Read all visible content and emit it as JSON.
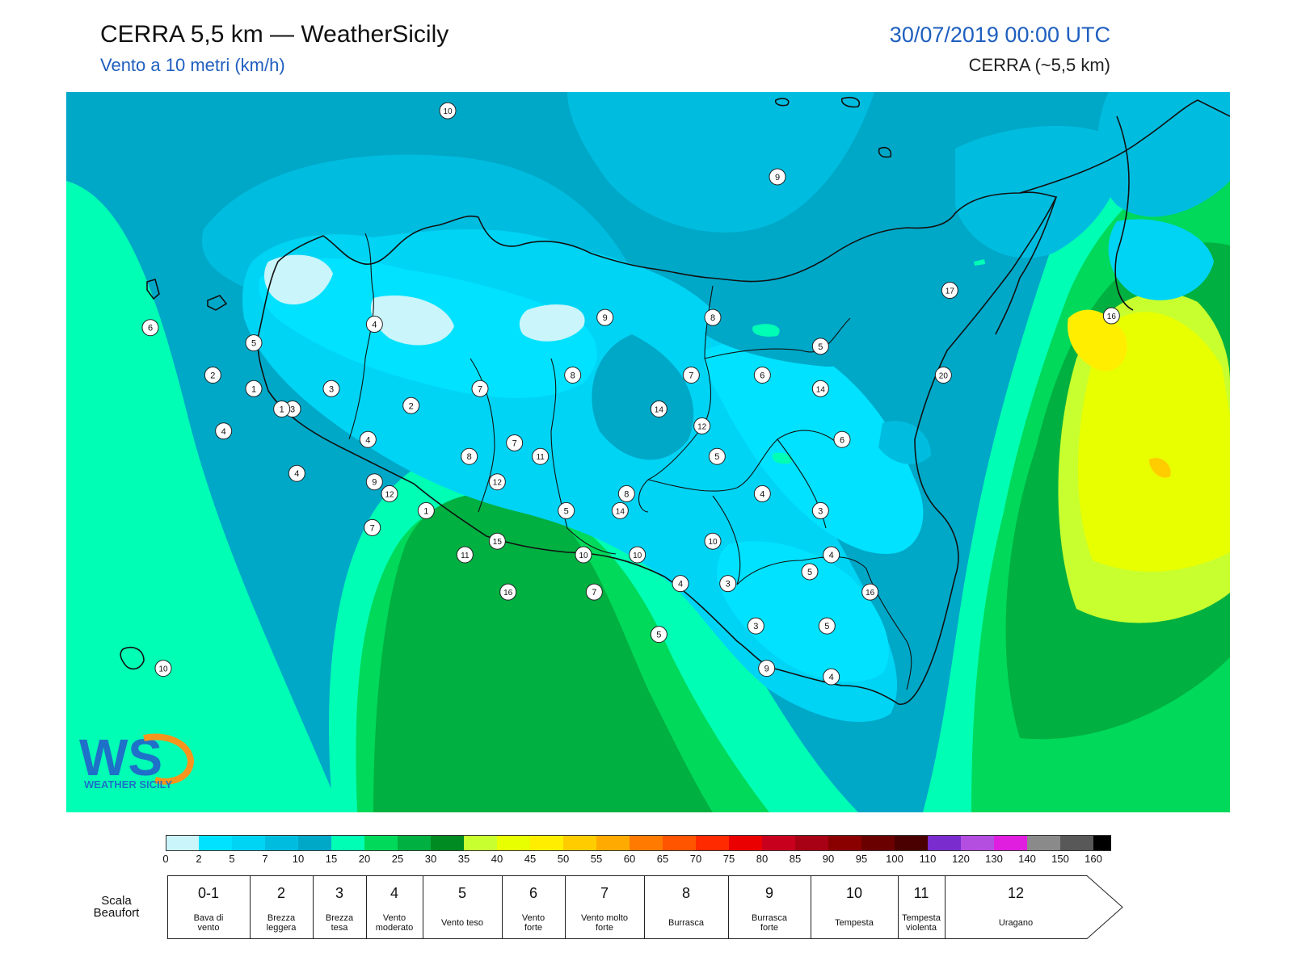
{
  "header": {
    "title": "CERRA 5,5 km — WeatherSicily",
    "subtitle": "Vento a 10 metri (km/h)",
    "datetime": "30/07/2019 00:00 UTC",
    "model": "CERRA (~5,5 km)"
  },
  "map": {
    "labels": [
      {
        "v": "10",
        "lon": 13.32,
        "lat": 39.34
      },
      {
        "v": "9",
        "lon": 14.85,
        "lat": 38.95
      },
      {
        "v": "17",
        "lon": 15.65,
        "lat": 38.28
      },
      {
        "v": "16",
        "lon": 16.4,
        "lat": 38.13
      },
      {
        "v": "4",
        "lon": 12.98,
        "lat": 38.08
      },
      {
        "v": "5",
        "lon": 12.42,
        "lat": 37.97
      },
      {
        "v": "6",
        "lon": 11.94,
        "lat": 38.06
      },
      {
        "v": "9",
        "lon": 14.05,
        "lat": 38.12
      },
      {
        "v": "8",
        "lon": 14.55,
        "lat": 38.12
      },
      {
        "v": "5",
        "lon": 15.05,
        "lat": 37.95
      },
      {
        "v": "2",
        "lon": 12.23,
        "lat": 37.78
      },
      {
        "v": "3",
        "lon": 12.78,
        "lat": 37.7
      },
      {
        "v": "1",
        "lon": 12.42,
        "lat": 37.7
      },
      {
        "v": "7",
        "lon": 13.47,
        "lat": 37.7
      },
      {
        "v": "8",
        "lon": 13.9,
        "lat": 37.78
      },
      {
        "v": "7",
        "lon": 14.45,
        "lat": 37.78
      },
      {
        "v": "6",
        "lon": 14.78,
        "lat": 37.78
      },
      {
        "v": "14",
        "lon": 15.05,
        "lat": 37.7
      },
      {
        "v": "20",
        "lon": 15.62,
        "lat": 37.78
      },
      {
        "v": "3",
        "lon": 12.6,
        "lat": 37.58
      },
      {
        "v": "1",
        "lon": 12.55,
        "lat": 37.58
      },
      {
        "v": "2",
        "lon": 13.15,
        "lat": 37.6
      },
      {
        "v": "14",
        "lon": 14.3,
        "lat": 37.58
      },
      {
        "v": "12",
        "lon": 14.5,
        "lat": 37.48
      },
      {
        "v": "4",
        "lon": 12.28,
        "lat": 37.45
      },
      {
        "v": "4",
        "lon": 12.95,
        "lat": 37.4
      },
      {
        "v": "7",
        "lon": 13.63,
        "lat": 37.38
      },
      {
        "v": "6",
        "lon": 15.15,
        "lat": 37.4
      },
      {
        "v": "8",
        "lon": 13.42,
        "lat": 37.3
      },
      {
        "v": "11",
        "lon": 13.75,
        "lat": 37.3
      },
      {
        "v": "5",
        "lon": 14.57,
        "lat": 37.3
      },
      {
        "v": "4",
        "lon": 12.62,
        "lat": 37.2
      },
      {
        "v": "9",
        "lon": 12.98,
        "lat": 37.15
      },
      {
        "v": "12",
        "lon": 13.55,
        "lat": 37.15
      },
      {
        "v": "12",
        "lon": 13.05,
        "lat": 37.08
      },
      {
        "v": "8",
        "lon": 14.15,
        "lat": 37.08
      },
      {
        "v": "4",
        "lon": 14.78,
        "lat": 37.08
      },
      {
        "v": "1",
        "lon": 13.22,
        "lat": 36.98
      },
      {
        "v": "5",
        "lon": 13.87,
        "lat": 36.98
      },
      {
        "v": "14",
        "lon": 14.12,
        "lat": 36.98
      },
      {
        "v": "3",
        "lon": 15.05,
        "lat": 36.98
      },
      {
        "v": "7",
        "lon": 12.97,
        "lat": 36.88
      },
      {
        "v": "15",
        "lon": 13.55,
        "lat": 36.8
      },
      {
        "v": "10",
        "lon": 14.55,
        "lat": 36.8
      },
      {
        "v": "11",
        "lon": 13.4,
        "lat": 36.72
      },
      {
        "v": "10",
        "lon": 13.95,
        "lat": 36.72
      },
      {
        "v": "10",
        "lon": 14.2,
        "lat": 36.72
      },
      {
        "v": "4",
        "lon": 15.1,
        "lat": 36.72
      },
      {
        "v": "5",
        "lon": 15.0,
        "lat": 36.62
      },
      {
        "v": "4",
        "lon": 14.4,
        "lat": 36.55
      },
      {
        "v": "3",
        "lon": 14.62,
        "lat": 36.55
      },
      {
        "v": "16",
        "lon": 13.6,
        "lat": 36.5
      },
      {
        "v": "7",
        "lon": 14.0,
        "lat": 36.5
      },
      {
        "v": "16",
        "lon": 15.28,
        "lat": 36.5
      },
      {
        "v": "3",
        "lon": 14.75,
        "lat": 36.3
      },
      {
        "v": "5",
        "lon": 15.08,
        "lat": 36.3
      },
      {
        "v": "5",
        "lon": 14.3,
        "lat": 36.25
      },
      {
        "v": "9",
        "lon": 14.8,
        "lat": 36.05
      },
      {
        "v": "4",
        "lon": 15.1,
        "lat": 36.0
      },
      {
        "v": "10",
        "lon": 12.0,
        "lat": 36.05
      }
    ]
  },
  "logo": {
    "letters": "WS",
    "text": "WEATHER SICILY"
  },
  "colorbar": {
    "ticks": [
      "0",
      "2",
      "5",
      "7",
      "10",
      "15",
      "20",
      "25",
      "30",
      "35",
      "40",
      "45",
      "50",
      "55",
      "60",
      "65",
      "70",
      "75",
      "80",
      "85",
      "90",
      "95",
      "100",
      "110",
      "120",
      "130",
      "140",
      "150",
      "160"
    ],
    "colors": [
      "#c9f5fb",
      "#00e2ff",
      "#00d4f5",
      "#00bde0",
      "#00a8c8",
      "#00ffb4",
      "#00d95a",
      "#00b040",
      "#008a22",
      "#c8ff2e",
      "#e8ff00",
      "#ffee00",
      "#ffcc00",
      "#ffaa00",
      "#ff7a00",
      "#ff5500",
      "#ff2a00",
      "#ea0000",
      "#c8001e",
      "#a80014",
      "#8a0000",
      "#6a0000",
      "#4a0000",
      "#7a2ccf",
      "#b44ee0",
      "#e01ee0",
      "#8a8a8a",
      "#585858",
      "#000000",
      "#8b4a2c",
      "#d2884a"
    ]
  },
  "beaufort": {
    "caption_line1": "Scala",
    "caption_line2": "Beaufort",
    "levels": [
      {
        "num": "0-1",
        "name1": "Bava di",
        "name2": "vento"
      },
      {
        "num": "2",
        "name1": "Brezza",
        "name2": "leggera"
      },
      {
        "num": "3",
        "name1": "Brezza",
        "name2": "tesa"
      },
      {
        "num": "4",
        "name1": "Vento",
        "name2": "moderato"
      },
      {
        "num": "5",
        "name1": "Vento teso",
        "name2": ""
      },
      {
        "num": "6",
        "name1": "Vento",
        "name2": "forte"
      },
      {
        "num": "7",
        "name1": "Vento molto",
        "name2": "forte"
      },
      {
        "num": "8",
        "name1": "Burrasca",
        "name2": ""
      },
      {
        "num": "9",
        "name1": "Burrasca",
        "name2": "forte"
      },
      {
        "num": "10",
        "name1": "Tempesta",
        "name2": ""
      },
      {
        "num": "11",
        "name1": "Tempesta",
        "name2": "violenta"
      },
      {
        "num": "12",
        "name1": "Uragano",
        "name2": ""
      }
    ]
  }
}
